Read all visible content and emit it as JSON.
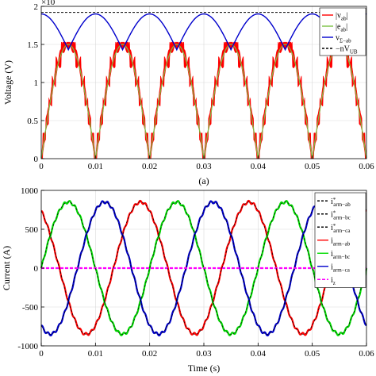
{
  "chart_data": [
    {
      "type": "line",
      "panel_label": "(a)",
      "ylabel": "Voltage (V)",
      "exponent_label": "×10",
      "xlim": [
        0,
        0.06
      ],
      "ylim": [
        0,
        20000
      ],
      "x_ticks": [
        0,
        0.01,
        0.02,
        0.03,
        0.04,
        0.05,
        0.06
      ],
      "x_tick_labels": [
        "0",
        "0.01",
        "0.02",
        "0.03",
        "0.04",
        "0.05",
        "0.06"
      ],
      "y_ticks": [
        0,
        5000,
        10000,
        15000,
        20000
      ],
      "y_tick_labels": [
        "0",
        "0.5",
        "1",
        "1.5",
        "2"
      ],
      "grid": true,
      "legend_position": "top-right",
      "fundamental_hz": 50,
      "series": [
        {
          "name": "|vab|",
          "label_main": "|v",
          "label_sub": "ab",
          "label_tail": "|",
          "color": "#ff0000",
          "kind": "multilevel |v_ab| (red fill between levels)",
          "peak": 15000
        },
        {
          "name": "|eab|",
          "label_main": "|e",
          "label_sub": "ab",
          "label_tail": "|",
          "color": "#7ac143",
          "kind": "abs sinusoid",
          "peak": 15000
        },
        {
          "name": "vΣ-ab",
          "label_main": "v",
          "label_sub": "Σ−ab",
          "label_tail": "",
          "color": "#0000cc",
          "kind": "upper envelope",
          "min": 14300,
          "max": 19000
        },
        {
          "name": "nVUB",
          "label_main": "−nV",
          "label_sub": "UB",
          "label_tail": "",
          "color": "#000000",
          "dash": "3,2",
          "kind": "constant",
          "value": 19200
        }
      ]
    },
    {
      "type": "line",
      "xlabel": "Time (s)",
      "ylabel": "Current (A)",
      "xlim": [
        0,
        0.06
      ],
      "ylim": [
        -1000,
        1000
      ],
      "x_ticks": [
        0,
        0.01,
        0.02,
        0.03,
        0.04,
        0.05,
        0.06
      ],
      "x_tick_labels": [
        "0",
        "0.01",
        "0.02",
        "0.03",
        "0.04",
        "0.05",
        "0.06"
      ],
      "y_ticks": [
        -1000,
        -500,
        0,
        500,
        1000
      ],
      "y_tick_labels": [
        "-1000",
        "-500",
        "0",
        "500",
        "1000"
      ],
      "grid": true,
      "legend_position": "top-right",
      "amplitude": 850,
      "fundamental_hz": 50,
      "series": [
        {
          "name": "i*arm-ab",
          "label_main": "i",
          "label_sup": "*",
          "label_sub": "arm−ab",
          "color": "#000000",
          "dash": "3,2",
          "phase_deg": 120
        },
        {
          "name": "i*arm-bc",
          "label_main": "i",
          "label_sup": "*",
          "label_sub": "arm−bc",
          "color": "#000000",
          "dash": "3,2",
          "phase_deg": 0
        },
        {
          "name": "i*arm-ca",
          "label_main": "i",
          "label_sup": "*",
          "label_sub": "arm−ca",
          "color": "#000000",
          "dash": "3,2",
          "phase_deg": -120
        },
        {
          "name": "iarm-ab",
          "label_main": "i",
          "label_sup": "",
          "label_sub": "arm−ab",
          "color": "#ff0000",
          "phase_deg": 120
        },
        {
          "name": "iarm-bc",
          "label_main": "i",
          "label_sup": "",
          "label_sub": "arm−bc",
          "color": "#00dd00",
          "phase_deg": 0
        },
        {
          "name": "iarm-ca",
          "label_main": "i",
          "label_sup": "",
          "label_sub": "arm−ca",
          "color": "#0000cc",
          "phase_deg": -120
        },
        {
          "name": "iz",
          "label_main": "i",
          "label_sup": "",
          "label_sub": "z",
          "color": "#ff00ff",
          "dash": "4,2",
          "constant": 0
        }
      ]
    }
  ]
}
